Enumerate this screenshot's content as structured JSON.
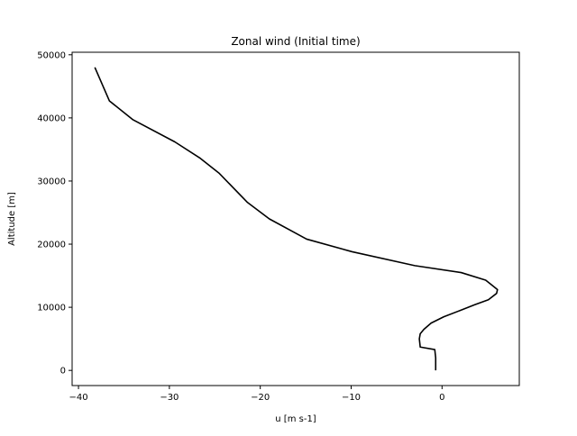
{
  "chart_data": {
    "type": "line",
    "title": "Zonal wind (Initial time)",
    "xlabel": "u [m s-1]",
    "ylabel": "Altitude [m]",
    "xlim": [
      -40.7,
      8.5
    ],
    "ylim": [
      -2400,
      50400
    ],
    "xticks": [
      -40,
      -30,
      -20,
      -10,
      0
    ],
    "xtick_labels": [
      "−40",
      "−30",
      "−20",
      "−10",
      "0"
    ],
    "yticks": [
      0,
      10000,
      20000,
      30000,
      40000,
      50000
    ],
    "ytick_labels": [
      "0",
      "10000",
      "20000",
      "30000",
      "40000",
      "50000"
    ],
    "grid": false,
    "line_color": "#000000",
    "series": [
      {
        "x": [
          -0.7,
          -0.7,
          -0.8,
          -2.4,
          -2.5,
          -2.4,
          -2.0,
          -1.2,
          0.2,
          2.0,
          3.6,
          5.1,
          6.0,
          6.1,
          5.5,
          4.8,
          2.1,
          -3.0,
          -9.9,
          -14.9,
          -19.0,
          -21.4,
          -24.5,
          -26.6,
          -29.4,
          -34.0,
          -36.6,
          -38.2
        ],
        "y": [
          0,
          2000,
          3300,
          3700,
          5000,
          5800,
          6500,
          7500,
          8500,
          9500,
          10400,
          11200,
          12200,
          12800,
          13500,
          14300,
          15500,
          16600,
          18800,
          20800,
          24000,
          26600,
          31200,
          33600,
          36200,
          39700,
          42700,
          48000
        ]
      }
    ]
  }
}
